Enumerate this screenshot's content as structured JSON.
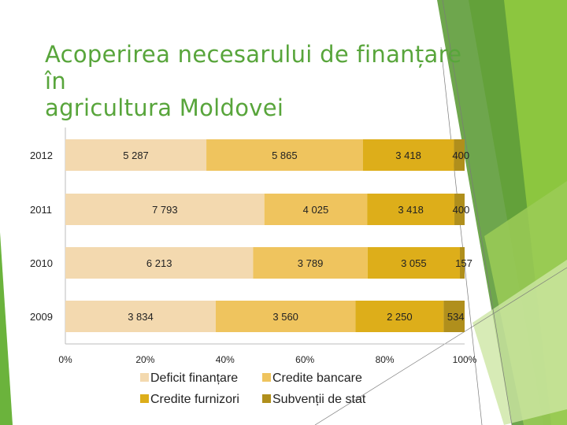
{
  "slide": {
    "title_line1": "Acoperirea necesarului de finanțare în",
    "title_line2": "agricultura Moldovei",
    "colors": {
      "title": "#58A53B",
      "accent_dark": "#4E8F2E",
      "accent_light": "#8CC63F"
    }
  },
  "chart_data": {
    "type": "bar",
    "orientation": "horizontal",
    "stacked": "percent",
    "categories": [
      "2012",
      "2011",
      "2010",
      "2009"
    ],
    "series": [
      {
        "name": "Deficit finanțare",
        "color": "#F3D9AF",
        "values": [
          5287,
          7793,
          6213,
          3834
        ]
      },
      {
        "name": "Credite bancare",
        "color": "#EFC45E",
        "values": [
          5865,
          4025,
          3789,
          3560
        ]
      },
      {
        "name": "Credite furnizori",
        "color": "#DDAE1A",
        "values": [
          3418,
          3418,
          3055,
          2250
        ]
      },
      {
        "name": "Subvenții de stat",
        "color": "#B08F1C",
        "values": [
          400,
          400,
          157,
          534
        ]
      }
    ],
    "value_labels": [
      [
        "5 287",
        "5 865",
        "3 418",
        "400"
      ],
      [
        "7 793",
        "4 025",
        "3 418",
        "400"
      ],
      [
        "6 213",
        "3 789",
        "3 055",
        "157"
      ],
      [
        "3 834",
        "3 560",
        "2 250",
        "534"
      ]
    ],
    "x_ticks": [
      "0%",
      "20%",
      "40%",
      "60%",
      "80%",
      "100%"
    ],
    "xlim": [
      0,
      100
    ],
    "grid": false,
    "legend_position": "bottom"
  }
}
